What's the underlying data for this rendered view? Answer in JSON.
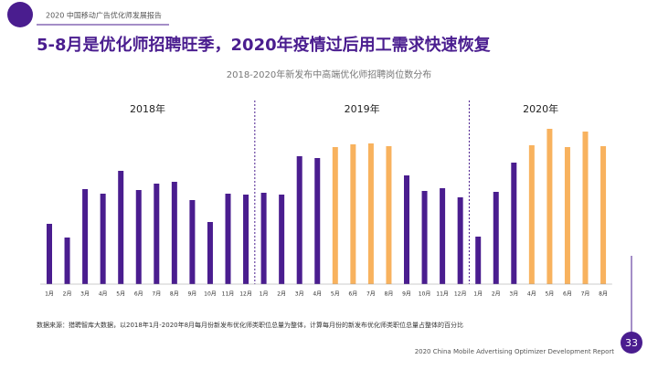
{
  "header": "2020 中国移动广告优化师发展报告",
  "title": "5-8月是优化师招聘旺季，2020年疫情过后用工需求快速恢复",
  "source": "数据来源：猎聘智库大数据，以2018年1月-2020年8月每月份新发布优化师类职位总量为整体，计算每月份的新发布优化师类职位总量占整体的百分比",
  "footer": "2020 China Mobile Advertising Optimizer Development Report",
  "page": "33",
  "chart_data": {
    "type": "bar",
    "title": "2018-2020年新发布中高端优化师招聘岗位数分布",
    "ylim": [
      0,
      180
    ],
    "groups": [
      {
        "name": "2018年",
        "categories": [
          "1月",
          "2月",
          "3月",
          "4月",
          "5月",
          "6月",
          "7月",
          "8月",
          "9月",
          "10月",
          "11月",
          "12月"
        ],
        "values": [
          66,
          51,
          104,
          99,
          124,
          103,
          110,
          112,
          92,
          68,
          99,
          98
        ],
        "colors": [
          "#4a1d8f",
          "#4a1d8f",
          "#4a1d8f",
          "#4a1d8f",
          "#4a1d8f",
          "#4a1d8f",
          "#4a1d8f",
          "#4a1d8f",
          "#4a1d8f",
          "#4a1d8f",
          "#4a1d8f",
          "#4a1d8f"
        ]
      },
      {
        "name": "2019年",
        "categories": [
          "1月",
          "2月",
          "3月",
          "4月",
          "5月",
          "6月",
          "7月",
          "8月",
          "9月",
          "10月",
          "11月",
          "12月"
        ],
        "values": [
          100,
          98,
          140,
          138,
          150,
          153,
          154,
          151,
          119,
          102,
          105,
          95
        ],
        "colors": [
          "#4a1d8f",
          "#4a1d8f",
          "#4a1d8f",
          "#4a1d8f",
          "#f8b25e",
          "#f8b25e",
          "#f8b25e",
          "#f8b25e",
          "#4a1d8f",
          "#4a1d8f",
          "#4a1d8f",
          "#4a1d8f"
        ]
      },
      {
        "name": "2020年",
        "categories": [
          "1月",
          "2月",
          "3月",
          "4月",
          "5月",
          "6月",
          "7月",
          "8月"
        ],
        "values": [
          52,
          101,
          133,
          152,
          170,
          150,
          167,
          151
        ],
        "colors": [
          "#4a1d8f",
          "#4a1d8f",
          "#4a1d8f",
          "#f8b25e",
          "#f8b25e",
          "#f8b25e",
          "#f8b25e",
          "#f8b25e"
        ]
      }
    ]
  }
}
